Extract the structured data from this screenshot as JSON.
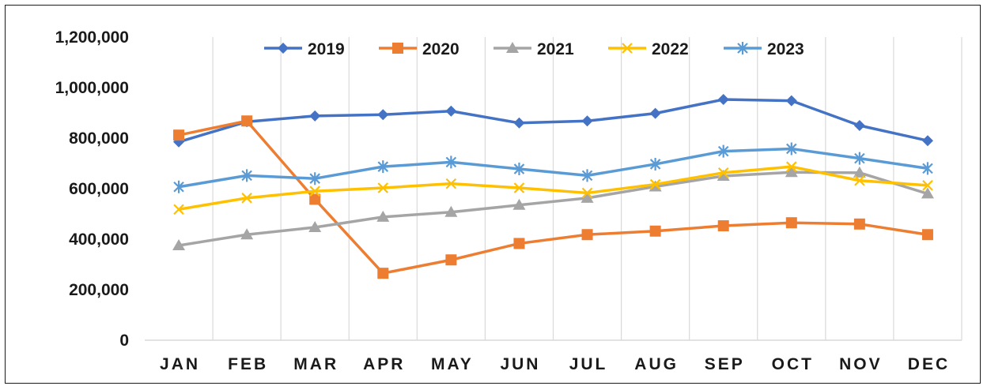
{
  "chart_data": {
    "type": "line",
    "title": "",
    "xlabel": "",
    "ylabel": "",
    "categories": [
      "JAN",
      "FEB",
      "MAR",
      "APR",
      "MAY",
      "JUN",
      "JUL",
      "AUG",
      "SEP",
      "OCT",
      "NOV",
      "DEC"
    ],
    "ylim": [
      0,
      1200000
    ],
    "yticks": [
      0,
      200000,
      400000,
      600000,
      800000,
      1000000,
      1200000
    ],
    "ytick_labels": [
      "0",
      "200,000",
      "400,000",
      "600,000",
      "800,000",
      "1,000,000",
      "1,200,000"
    ],
    "grid": "vertical",
    "legend_position": "top",
    "series": [
      {
        "name": "2019",
        "color": "#4472C4",
        "marker": "diamond",
        "values": [
          785000,
          865000,
          888000,
          893000,
          907000,
          860000,
          868000,
          898000,
          953000,
          948000,
          850000,
          790000
        ]
      },
      {
        "name": "2020",
        "color": "#ED7D31",
        "marker": "square",
        "values": [
          812000,
          868000,
          558000,
          265000,
          318000,
          383000,
          418000,
          432000,
          453000,
          465000,
          460000,
          418000
        ]
      },
      {
        "name": "2021",
        "color": "#A5A5A5",
        "marker": "triangle",
        "values": [
          375000,
          418000,
          447000,
          488000,
          507000,
          535000,
          563000,
          608000,
          650000,
          665000,
          663000,
          580000
        ]
      },
      {
        "name": "2022",
        "color": "#FFC000",
        "marker": "x",
        "values": [
          518000,
          563000,
          590000,
          603000,
          620000,
          603000,
          583000,
          617000,
          663000,
          687000,
          632000,
          613000
        ]
      },
      {
        "name": "2023",
        "color": "#5B9BD5",
        "marker": "star",
        "values": [
          607000,
          652000,
          640000,
          687000,
          705000,
          678000,
          652000,
          697000,
          748000,
          758000,
          720000,
          680000
        ]
      }
    ]
  }
}
